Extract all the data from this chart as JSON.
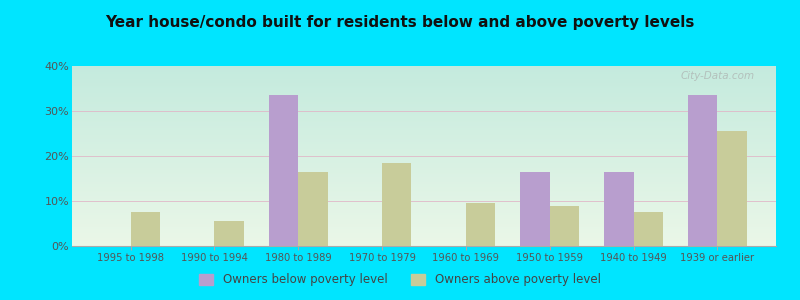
{
  "title": "Year house/condo built for residents below and above poverty levels",
  "categories": [
    "1995 to 1998",
    "1990 to 1994",
    "1980 to 1989",
    "1970 to 1979",
    "1960 to 1969",
    "1950 to 1959",
    "1940 to 1949",
    "1939 or earlier"
  ],
  "below_poverty": [
    0,
    0,
    33.5,
    0,
    0,
    16.5,
    16.5,
    33.5
  ],
  "above_poverty": [
    7.5,
    5.5,
    16.5,
    18.5,
    9.5,
    9.0,
    7.5,
    25.5
  ],
  "below_color": "#b89ece",
  "above_color": "#c8cc9a",
  "bg_top_left": "#c5eadc",
  "bg_bottom_right": "#eaf5e8",
  "outer_bg": "#00e5ff",
  "ylim": [
    0,
    40
  ],
  "yticks": [
    0,
    10,
    20,
    30,
    40
  ],
  "bar_width": 0.35,
  "legend_below_label": "Owners below poverty level",
  "legend_above_label": "Owners above poverty level",
  "watermark": "City-Data.com",
  "grid_color": "#dddddd",
  "tick_color": "#888888",
  "label_color": "#555555"
}
